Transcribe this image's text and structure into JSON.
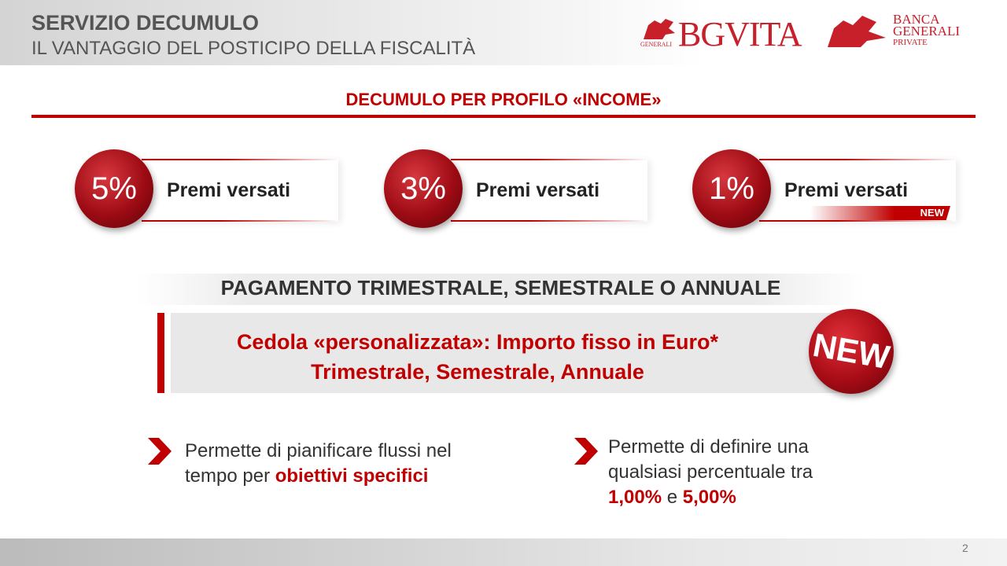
{
  "header": {
    "title": "SERVIZIO DECUMULO",
    "subtitle": "IL VANTAGGIO DEL POSTICIPO DELLA FISCALITÀ"
  },
  "logos": {
    "bgvita": "BGVITA",
    "bgvita_mark": "GENERALI",
    "banca": [
      "BANCA",
      "GENERALI",
      "PRIVATE"
    ]
  },
  "section_title": "DECUMULO PER PROFILO «INCOME»",
  "options": [
    {
      "percent": "5%",
      "label": "Premi versati"
    },
    {
      "percent": "3%",
      "label": "Premi versati"
    },
    {
      "percent": "1%",
      "label": "Premi versati",
      "badge": "NEW"
    }
  ],
  "payment": "PAGAMENTO TRIMESTRALE, SEMESTRALE O ANNUALE",
  "coupon": {
    "lines": [
      "Cedola «personalizzata»: Importo fisso in Euro*",
      "Trimestrale, Semestrale, Annuale"
    ],
    "badge": "NEW"
  },
  "bullets": [
    {
      "text": "Permette di pianificare flussi nel tempo per",
      "highlight": "obiettivi specifici"
    },
    {
      "text": "Permette di definire una qualsiasi percentuale tra",
      "low": "1,00%",
      "connector": "e",
      "high": "5,00%"
    }
  ],
  "page_number": "2"
}
